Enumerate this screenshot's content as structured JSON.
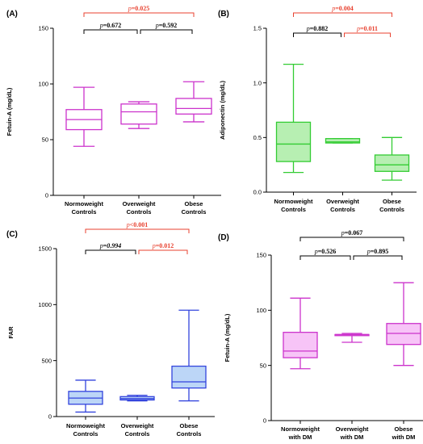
{
  "chart_data": [
    {
      "type": "boxplot",
      "panel_label": "(A)",
      "ylabel": "Fetuin-A (mg/dL)",
      "ylim": [
        0,
        150
      ],
      "yticks": [
        0,
        50,
        100,
        150
      ],
      "color": "#cc33cc",
      "fill": "none",
      "categories": [
        [
          "Normoweight",
          "Controls"
        ],
        [
          "Overweight",
          "Controls"
        ],
        [
          "Obese",
          "Controls"
        ]
      ],
      "boxes": [
        {
          "min": 44,
          "q1": 59,
          "median": 68,
          "q3": 77,
          "max": 97
        },
        {
          "min": 60,
          "q1": 64,
          "median": 75,
          "q3": 82,
          "max": 84
        },
        {
          "min": 66,
          "q1": 73,
          "median": 78,
          "q3": 87,
          "max": 102
        }
      ],
      "comparisons": [
        {
          "from": 0,
          "to": 1,
          "level": 0,
          "text": "=0.672",
          "color": "#000000",
          "italic": false
        },
        {
          "from": 1,
          "to": 2,
          "level": 0,
          "text": "=0.592",
          "color": "#000000",
          "italic": false
        },
        {
          "from": 0,
          "to": 2,
          "level": 1,
          "text": "=0.025",
          "color": "#e8412f",
          "italic": false
        }
      ]
    },
    {
      "type": "boxplot",
      "panel_label": "(B)",
      "ylabel": "Adiponectin (mg/dL)",
      "ylim": [
        0,
        1.5
      ],
      "yticks": [
        0.0,
        0.5,
        1.0,
        1.5
      ],
      "yticklabels": [
        "0.0",
        "0.5",
        "1.0",
        "1.5"
      ],
      "color": "#33cc33",
      "fill": "#b7efb2",
      "categories": [
        [
          "Normoweight",
          "Controls"
        ],
        [
          "Overweight",
          "Controls"
        ],
        [
          "Obese",
          "Controls"
        ]
      ],
      "boxes": [
        {
          "min": 0.18,
          "q1": 0.28,
          "median": 0.44,
          "q3": 0.64,
          "max": 1.17
        },
        {
          "min": 0.45,
          "q1": 0.45,
          "median": 0.46,
          "q3": 0.49,
          "max": 0.49
        },
        {
          "min": 0.11,
          "q1": 0.19,
          "median": 0.25,
          "q3": 0.34,
          "max": 0.5
        }
      ],
      "comparisons": [
        {
          "from": 0,
          "to": 1,
          "level": 0,
          "text": "=0.882",
          "color": "#000000",
          "italic": false
        },
        {
          "from": 1,
          "to": 2,
          "level": 0,
          "text": "=0.011",
          "color": "#e8412f",
          "italic": false
        },
        {
          "from": 0,
          "to": 2,
          "level": 1,
          "text": "=0.004",
          "color": "#e8412f",
          "italic": false
        }
      ]
    },
    {
      "type": "boxplot",
      "panel_label": "(C)",
      "ylabel": "FAR",
      "ylim": [
        0,
        1500
      ],
      "yticks": [
        0,
        500,
        1000,
        1500
      ],
      "color": "#3344dd",
      "fill": "#bcd6f7",
      "categories": [
        [
          "Normoweight",
          "Controls"
        ],
        [
          "Overweight",
          "Controls"
        ],
        [
          "Obese",
          "Controls"
        ]
      ],
      "boxes": [
        {
          "min": 40,
          "q1": 110,
          "median": 165,
          "q3": 225,
          "max": 325
        },
        {
          "min": 140,
          "q1": 148,
          "median": 160,
          "q3": 178,
          "max": 190
        },
        {
          "min": 140,
          "q1": 255,
          "median": 310,
          "q3": 450,
          "max": 950
        }
      ],
      "comparisons": [
        {
          "from": 0,
          "to": 1,
          "level": 0,
          "text": "=0.994",
          "color": "#000000",
          "italic": true
        },
        {
          "from": 1,
          "to": 2,
          "level": 0,
          "text": "=0.012",
          "color": "#e8412f",
          "italic": false
        },
        {
          "from": 0,
          "to": 2,
          "level": 1,
          "text": "<0.001",
          "color": "#e8412f",
          "italic": false
        }
      ]
    },
    {
      "type": "boxplot",
      "panel_label": "(D)",
      "ylabel": "Fetuin-A (mg/dL)",
      "ylim": [
        0,
        150
      ],
      "yticks": [
        0,
        50,
        100,
        150
      ],
      "color": "#cc33cc",
      "fill": "#f7c4f7",
      "categories": [
        [
          "Normoweight",
          "with DM"
        ],
        [
          "Overweight",
          "with DM"
        ],
        [
          "Obese",
          "with DM"
        ]
      ],
      "boxes": [
        {
          "min": 47,
          "q1": 57,
          "median": 63,
          "q3": 80,
          "max": 111
        },
        {
          "min": 71,
          "q1": 77,
          "median": 78,
          "q3": 78,
          "max": 79
        },
        {
          "min": 50,
          "q1": 69,
          "median": 79,
          "q3": 88,
          "max": 125
        }
      ],
      "comparisons": [
        {
          "from": 0,
          "to": 1,
          "level": 0,
          "text": "=0.526",
          "color": "#000000",
          "italic": false
        },
        {
          "from": 1,
          "to": 2,
          "level": 0,
          "text": "=0.895",
          "color": "#000000",
          "italic": false
        },
        {
          "from": 0,
          "to": 2,
          "level": 1,
          "text": "=0.067",
          "color": "#000000",
          "italic": false
        }
      ]
    }
  ],
  "p_symbol": "p"
}
